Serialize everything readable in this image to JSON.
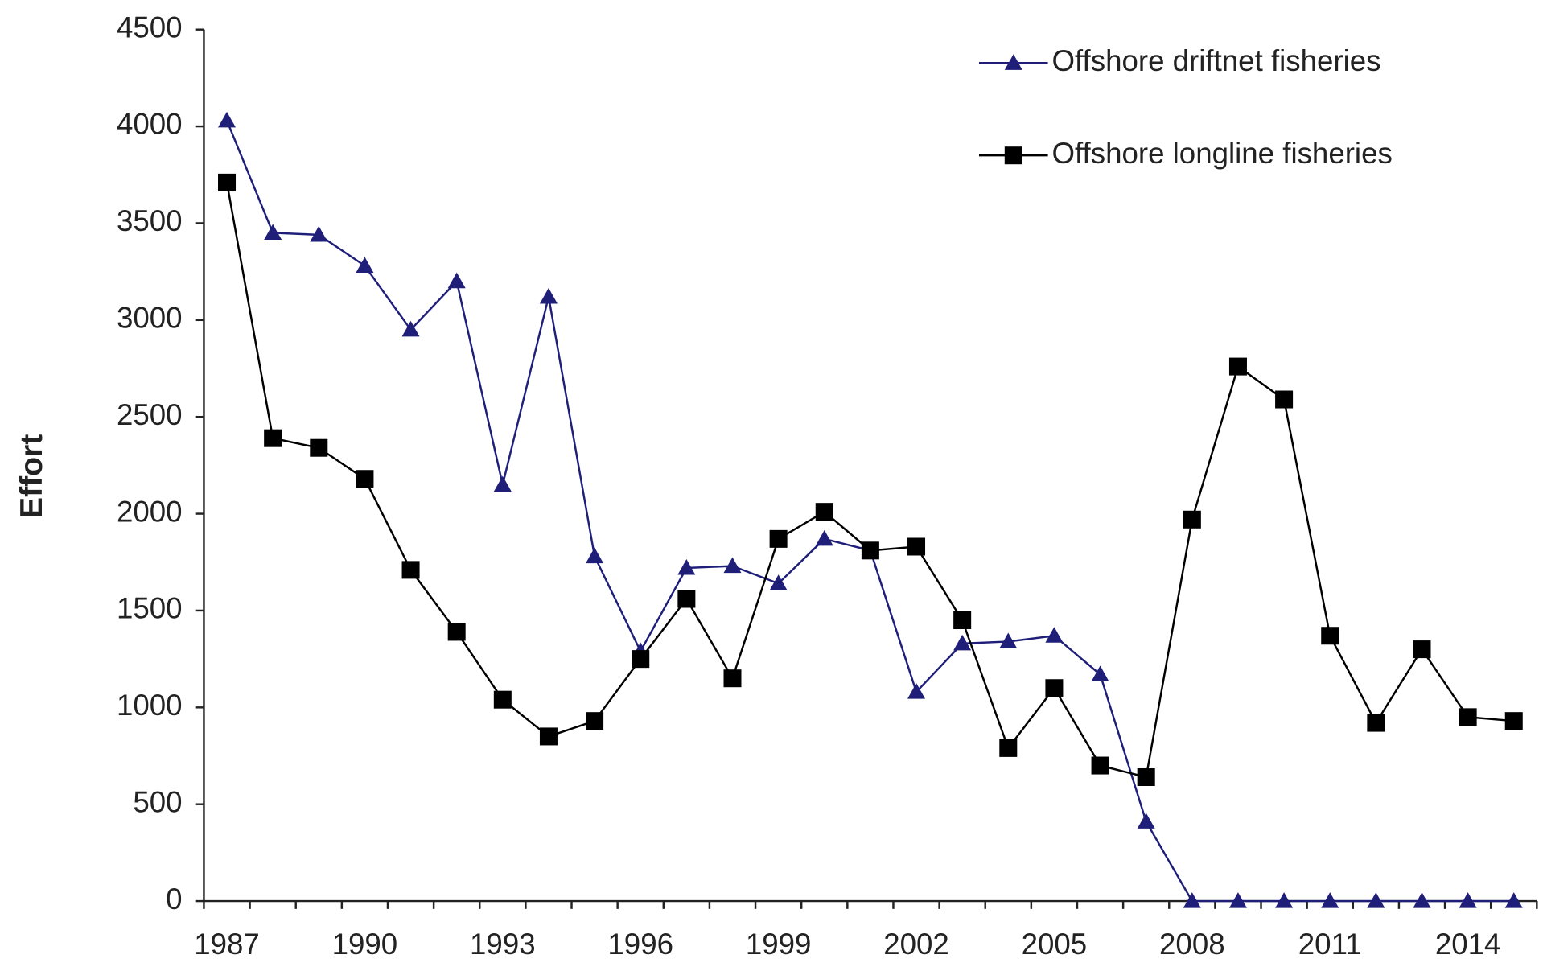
{
  "chart_data": {
    "type": "line",
    "ylabel": "Effort",
    "categories": [
      "1987",
      null,
      null,
      "1990",
      null,
      null,
      "1993",
      null,
      null,
      "1996",
      null,
      null,
      "1999",
      null,
      null,
      "2002",
      null,
      null,
      "2005",
      null,
      null,
      "2008",
      null,
      null,
      "2011",
      null,
      null,
      "2014",
      null
    ],
    "ylim": [
      0,
      4500
    ],
    "yticks": [
      0,
      500,
      1000,
      1500,
      2000,
      2500,
      3000,
      3500,
      4000,
      4500
    ],
    "legend": "upper right",
    "series": [
      {
        "name": "Offshore driftnet fisheries",
        "color": "#1f1f7a",
        "marker": "triangle",
        "values": [
          4030,
          3450,
          3440,
          3280,
          2950,
          3200,
          2150,
          3120,
          1780,
          1290,
          1720,
          1730,
          1640,
          1870,
          1810,
          1080,
          1330,
          1340,
          1370,
          1170,
          410,
          0,
          0,
          0,
          0,
          0,
          0,
          0,
          0
        ]
      },
      {
        "name": "Offshore longline fisheries",
        "color": "#000000",
        "marker": "square",
        "values": [
          3710,
          2390,
          2340,
          2180,
          1710,
          1390,
          1040,
          850,
          930,
          1250,
          1560,
          1150,
          1870,
          2010,
          1810,
          1830,
          1450,
          790,
          1100,
          700,
          640,
          1970,
          2760,
          2590,
          1370,
          920,
          1300,
          950,
          930
        ]
      }
    ]
  }
}
